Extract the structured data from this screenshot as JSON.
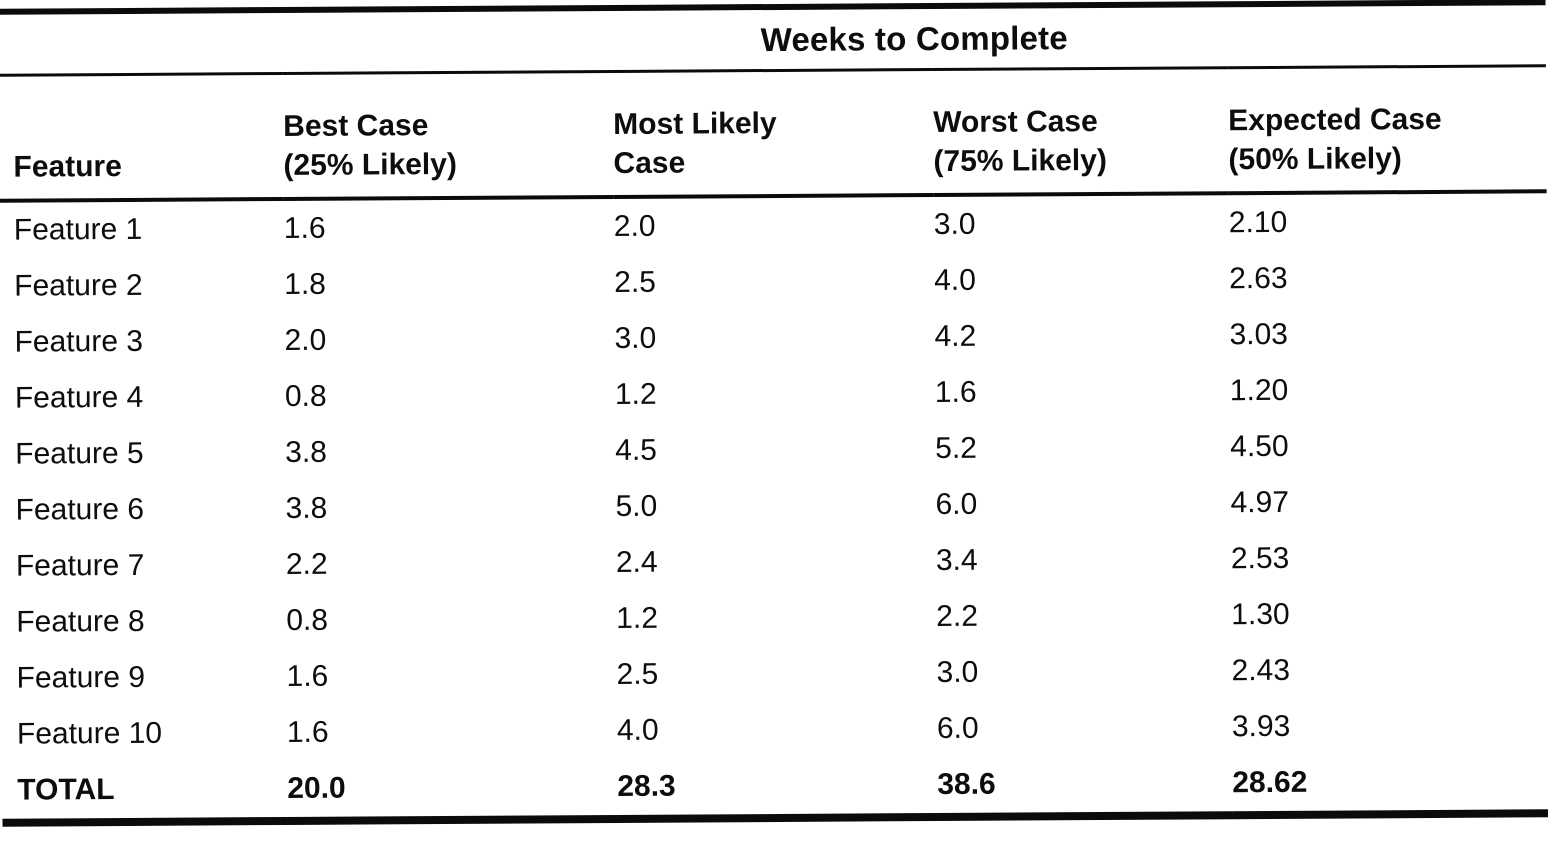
{
  "colors": {
    "ink": "#0b0b0b",
    "paper": "#ffffff"
  },
  "table": {
    "title": "Weeks to Complete",
    "headers": {
      "feature": "Feature",
      "best": {
        "line1": "Best Case",
        "line2": "(25% Likely)"
      },
      "most_likely": {
        "line1": "Most Likely",
        "line2": "Case"
      },
      "worst": {
        "line1": "Worst Case",
        "line2": "(75% Likely)"
      },
      "expected": {
        "line1": "Expected Case",
        "line2": "(50% Likely)"
      }
    },
    "rows": [
      {
        "feature": "Feature 1",
        "best": "1.6",
        "most_likely": "2.0",
        "worst": "3.0",
        "expected": "2.10"
      },
      {
        "feature": "Feature 2",
        "best": "1.8",
        "most_likely": "2.5",
        "worst": "4.0",
        "expected": "2.63"
      },
      {
        "feature": "Feature 3",
        "best": "2.0",
        "most_likely": "3.0",
        "worst": "4.2",
        "expected": "3.03"
      },
      {
        "feature": "Feature 4",
        "best": "0.8",
        "most_likely": "1.2",
        "worst": "1.6",
        "expected": "1.20"
      },
      {
        "feature": "Feature 5",
        "best": "3.8",
        "most_likely": "4.5",
        "worst": "5.2",
        "expected": "4.50"
      },
      {
        "feature": "Feature 6",
        "best": "3.8",
        "most_likely": "5.0",
        "worst": "6.0",
        "expected": "4.97"
      },
      {
        "feature": "Feature 7",
        "best": "2.2",
        "most_likely": "2.4",
        "worst": "3.4",
        "expected": "2.53"
      },
      {
        "feature": "Feature 8",
        "best": "0.8",
        "most_likely": "1.2",
        "worst": "2.2",
        "expected": "1.30"
      },
      {
        "feature": "Feature 9",
        "best": "1.6",
        "most_likely": "2.5",
        "worst": "3.0",
        "expected": "2.43"
      },
      {
        "feature": "Feature 10",
        "best": "1.6",
        "most_likely": "4.0",
        "worst": "6.0",
        "expected": "3.93"
      }
    ],
    "total": {
      "feature": "TOTAL",
      "best": "20.0",
      "most_likely": "28.3",
      "worst": "38.6",
      "expected": "28.62"
    }
  }
}
